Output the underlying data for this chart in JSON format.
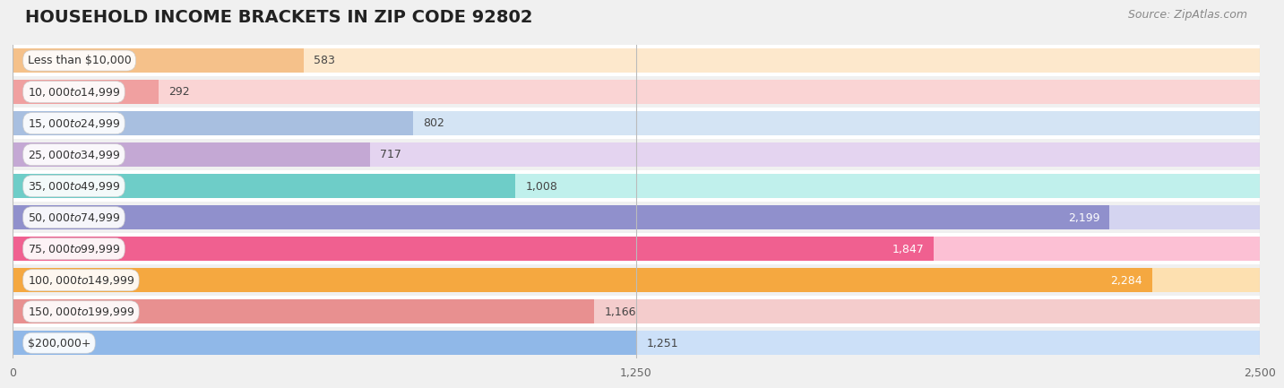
{
  "title": "HOUSEHOLD INCOME BRACKETS IN ZIP CODE 92802",
  "source": "Source: ZipAtlas.com",
  "categories": [
    "Less than $10,000",
    "$10,000 to $14,999",
    "$15,000 to $24,999",
    "$25,000 to $34,999",
    "$35,000 to $49,999",
    "$50,000 to $74,999",
    "$75,000 to $99,999",
    "$100,000 to $149,999",
    "$150,000 to $199,999",
    "$200,000+"
  ],
  "values": [
    583,
    292,
    802,
    717,
    1008,
    2199,
    1847,
    2284,
    1166,
    1251
  ],
  "bar_colors": [
    "#f5c18a",
    "#f0a0a0",
    "#a8bfe0",
    "#c4a8d4",
    "#6ecdc8",
    "#9090cc",
    "#f06090",
    "#f5a840",
    "#e89090",
    "#90b8e8"
  ],
  "bar_colors_light": [
    "#fde8cc",
    "#fad4d4",
    "#d4e4f4",
    "#e4d4f0",
    "#c0f0ec",
    "#d4d4f0",
    "#fcc0d4",
    "#fde0b0",
    "#f4cccc",
    "#cce0f8"
  ],
  "xlim": [
    0,
    2500
  ],
  "xticks": [
    0,
    1250,
    2500
  ],
  "xtick_labels": [
    "0",
    "1,250",
    "2,500"
  ],
  "label_color_threshold": 1500,
  "background_color": "#f0f0f0",
  "row_colors": [
    "#ffffff",
    "#f0f0f0"
  ],
  "title_fontsize": 14,
  "source_fontsize": 9,
  "value_fontsize": 9,
  "category_fontsize": 9,
  "bar_height": 0.78
}
